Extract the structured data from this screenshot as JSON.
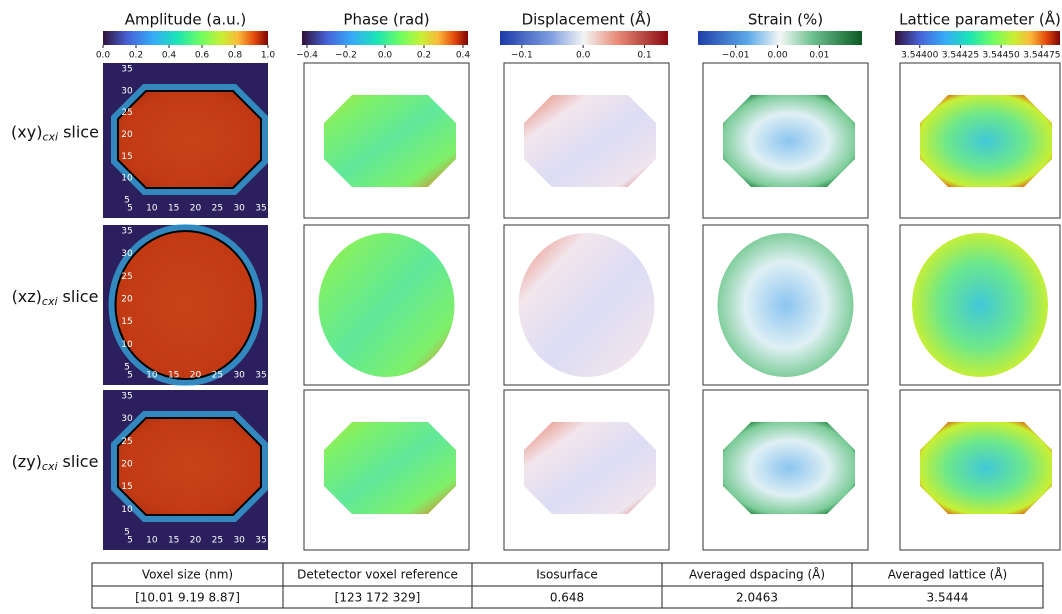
{
  "columns": [
    {
      "title": "Amplitude (a.u.)",
      "ticks": [
        "0.0",
        "0.2",
        "0.4",
        "0.6",
        "0.8",
        "1.0"
      ]
    },
    {
      "title": "Phase (rad)",
      "ticks": [
        "−0.4",
        "−0.2",
        "0.0",
        "0.2",
        "0.4"
      ]
    },
    {
      "title": "Displacement (Å)",
      "ticks": [
        "−0.1",
        "0.0",
        "0.1"
      ]
    },
    {
      "title": "Strain (%)",
      "ticks": [
        "−0.01",
        "0.00",
        "0.01"
      ]
    },
    {
      "title": "Lattice parameter (Å)",
      "ticks": [
        "3.54400",
        "3.54425",
        "3.54450",
        "3.54475"
      ]
    }
  ],
  "rows": [
    {
      "plane": "(xy)",
      "subscript": "cxi",
      "suffix": "slice"
    },
    {
      "plane": "(xz)",
      "subscript": "cxi",
      "suffix": "slice"
    },
    {
      "plane": "(zy)",
      "subscript": "cxi",
      "suffix": "slice"
    }
  ],
  "amplitude_axis": {
    "y_ticks": [
      "35",
      "30",
      "25",
      "20",
      "15",
      "10",
      "5"
    ],
    "x_ticks": [
      "5",
      "10",
      "15",
      "20",
      "25",
      "30",
      "35"
    ]
  },
  "table": {
    "header": [
      "Voxel size (nm)",
      "Detetector voxel reference",
      "Isosurface",
      "Averaged dspacing (Å)",
      "Averaged lattice (Å)"
    ],
    "row": [
      "[10.01 9.19 8.87]",
      "[123 172 329]",
      "0.648",
      "2.0463",
      "3.5444"
    ]
  }
}
